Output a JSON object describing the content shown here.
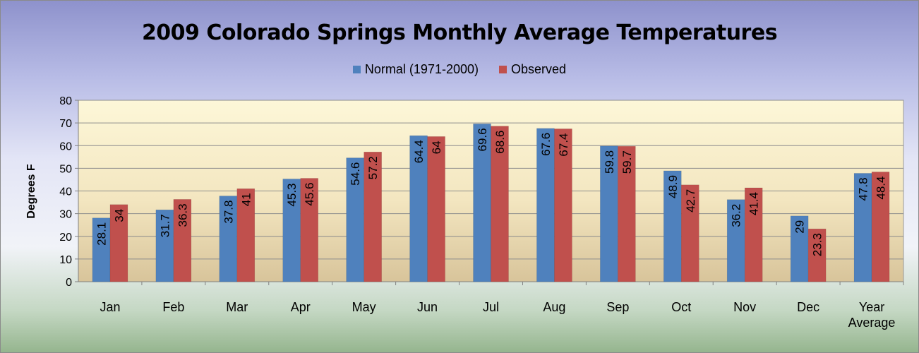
{
  "chart_data": {
    "type": "bar",
    "title": "2009 Colorado Springs Monthly Average Temperatures",
    "ylabel": "Degrees  F",
    "xlabel": "",
    "ylim": [
      0,
      80
    ],
    "yticks": [
      0,
      10,
      20,
      30,
      40,
      50,
      60,
      70,
      80
    ],
    "grid": true,
    "legend_position": "top",
    "categories": [
      "Jan",
      "Feb",
      "Mar",
      "Apr",
      "May",
      "Jun",
      "Jul",
      "Aug",
      "Sep",
      "Oct",
      "Nov",
      "Dec",
      "Year Average"
    ],
    "series": [
      {
        "name": "Normal (1971-2000)",
        "color": "#4f81bd",
        "values": [
          28.1,
          31.7,
          37.8,
          45.3,
          54.6,
          64.4,
          69.6,
          67.6,
          59.8,
          48.9,
          36.2,
          29,
          47.8
        ]
      },
      {
        "name": "Observed",
        "color": "#c0504d",
        "values": [
          34,
          36.3,
          41,
          45.6,
          57.2,
          64,
          68.6,
          67.4,
          59.7,
          42.7,
          41.4,
          23.3,
          48.4
        ]
      }
    ]
  }
}
